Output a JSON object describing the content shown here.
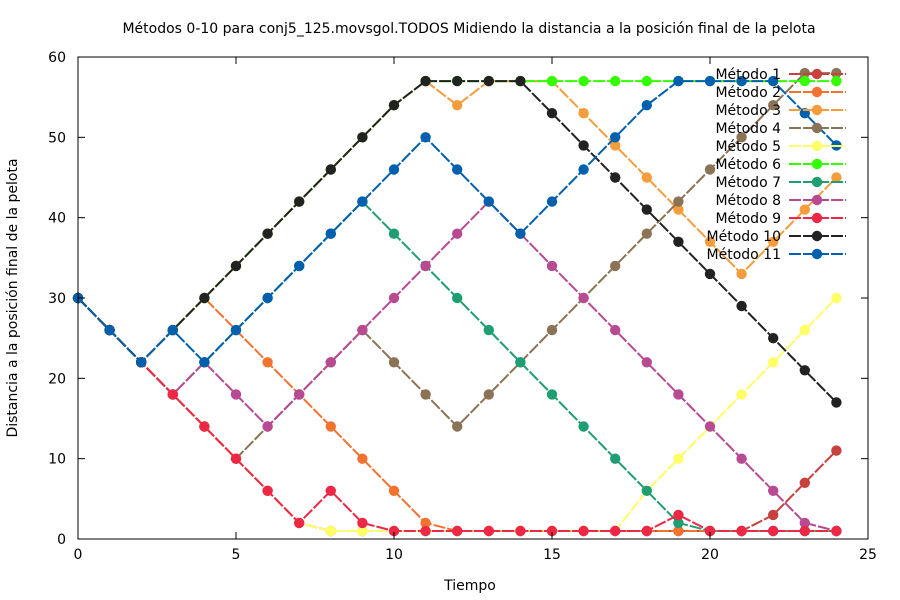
{
  "chart_data": {
    "type": "line",
    "title": "Métodos 0-10 para conj5_125.movsgol.TODOS Midiendo la distancia a la posición final de la pelota",
    "xlabel": "Tiempo",
    "ylabel": "Distancia a la posición final de la pelota",
    "xlim": [
      0,
      25
    ],
    "ylim": [
      0,
      60
    ],
    "xticks": [
      0,
      5,
      10,
      15,
      20,
      25
    ],
    "yticks": [
      0,
      10,
      20,
      30,
      40,
      50,
      60
    ],
    "grid": false,
    "legend_position": "top-right",
    "series": [
      {
        "name": "Método 1",
        "color": "#c8413c",
        "points": [
          [
            0,
            30
          ],
          [
            1,
            26
          ],
          [
            2,
            22
          ],
          [
            3,
            18
          ],
          [
            4,
            14
          ],
          [
            5,
            10
          ],
          [
            6,
            6
          ],
          [
            7,
            2
          ],
          [
            8,
            1
          ],
          [
            9,
            1
          ],
          [
            10,
            1
          ],
          [
            11,
            1
          ],
          [
            12,
            1
          ],
          [
            13,
            1
          ],
          [
            14,
            1
          ],
          [
            15,
            1
          ],
          [
            16,
            1
          ],
          [
            17,
            1
          ],
          [
            18,
            1
          ],
          [
            19,
            1
          ],
          [
            20,
            1
          ],
          [
            21,
            1
          ],
          [
            22,
            3
          ],
          [
            23,
            7
          ],
          [
            24,
            11
          ]
        ]
      },
      {
        "name": "Método 2",
        "color": "#f27330",
        "points": [
          [
            0,
            30
          ],
          [
            1,
            26
          ],
          [
            2,
            22
          ],
          [
            3,
            26
          ],
          [
            4,
            30
          ],
          [
            5,
            26
          ],
          [
            6,
            22
          ],
          [
            7,
            18
          ],
          [
            8,
            14
          ],
          [
            9,
            10
          ],
          [
            10,
            6
          ],
          [
            11,
            2
          ],
          [
            12,
            1
          ],
          [
            13,
            1
          ],
          [
            14,
            1
          ],
          [
            15,
            1
          ],
          [
            16,
            1
          ],
          [
            17,
            1
          ],
          [
            18,
            1
          ],
          [
            19,
            1
          ],
          [
            20,
            1
          ],
          [
            21,
            1
          ],
          [
            22,
            1
          ],
          [
            23,
            1
          ],
          [
            24,
            1
          ]
        ]
      },
      {
        "name": "Método 3",
        "color": "#f59d3d",
        "points": [
          [
            0,
            30
          ],
          [
            1,
            26
          ],
          [
            2,
            22
          ],
          [
            3,
            26
          ],
          [
            4,
            30
          ],
          [
            5,
            34
          ],
          [
            6,
            38
          ],
          [
            7,
            42
          ],
          [
            8,
            46
          ],
          [
            9,
            50
          ],
          [
            10,
            54
          ],
          [
            11,
            57
          ],
          [
            12,
            54
          ],
          [
            13,
            57
          ],
          [
            14,
            57
          ],
          [
            15,
            57
          ],
          [
            16,
            53
          ],
          [
            17,
            49
          ],
          [
            18,
            45
          ],
          [
            19,
            41
          ],
          [
            20,
            37
          ],
          [
            21,
            33
          ],
          [
            22,
            37
          ],
          [
            23,
            41
          ],
          [
            24,
            45
          ]
        ]
      },
      {
        "name": "Método 4",
        "color": "#8b7355",
        "points": [
          [
            0,
            30
          ],
          [
            1,
            26
          ],
          [
            2,
            22
          ],
          [
            3,
            18
          ],
          [
            4,
            14
          ],
          [
            5,
            10
          ],
          [
            6,
            14
          ],
          [
            7,
            18
          ],
          [
            8,
            22
          ],
          [
            9,
            26
          ],
          [
            10,
            22
          ],
          [
            11,
            18
          ],
          [
            12,
            14
          ],
          [
            13,
            18
          ],
          [
            14,
            22
          ],
          [
            15,
            26
          ],
          [
            16,
            30
          ],
          [
            17,
            34
          ],
          [
            18,
            38
          ],
          [
            19,
            42
          ],
          [
            20,
            46
          ],
          [
            21,
            50
          ],
          [
            22,
            54
          ],
          [
            23,
            58
          ],
          [
            24,
            58
          ]
        ]
      },
      {
        "name": "Método 5",
        "color": "#ffff66",
        "points": [
          [
            0,
            30
          ],
          [
            1,
            26
          ],
          [
            2,
            22
          ],
          [
            3,
            18
          ],
          [
            4,
            14
          ],
          [
            5,
            10
          ],
          [
            6,
            6
          ],
          [
            7,
            2
          ],
          [
            8,
            1
          ],
          [
            9,
            1
          ],
          [
            10,
            1
          ],
          [
            11,
            1
          ],
          [
            12,
            1
          ],
          [
            13,
            1
          ],
          [
            14,
            1
          ],
          [
            15,
            1
          ],
          [
            16,
            1
          ],
          [
            17,
            1
          ],
          [
            18,
            6
          ],
          [
            19,
            10
          ],
          [
            20,
            14
          ],
          [
            21,
            18
          ],
          [
            22,
            22
          ],
          [
            23,
            26
          ],
          [
            24,
            30
          ]
        ]
      },
      {
        "name": "Método 6",
        "color": "#33ff00",
        "points": [
          [
            0,
            30
          ],
          [
            1,
            26
          ],
          [
            2,
            22
          ],
          [
            3,
            26
          ],
          [
            4,
            30
          ],
          [
            5,
            34
          ],
          [
            6,
            38
          ],
          [
            7,
            42
          ],
          [
            8,
            46
          ],
          [
            9,
            50
          ],
          [
            10,
            54
          ],
          [
            11,
            57
          ],
          [
            12,
            57
          ],
          [
            13,
            57
          ],
          [
            14,
            57
          ],
          [
            15,
            57
          ],
          [
            16,
            57
          ],
          [
            17,
            57
          ],
          [
            18,
            57
          ],
          [
            19,
            57
          ],
          [
            20,
            57
          ],
          [
            21,
            57
          ],
          [
            22,
            57
          ],
          [
            23,
            57
          ],
          [
            24,
            57
          ]
        ]
      },
      {
        "name": "Método 7",
        "color": "#1f9e72",
        "points": [
          [
            0,
            30
          ],
          [
            1,
            26
          ],
          [
            2,
            22
          ],
          [
            3,
            18
          ],
          [
            4,
            22
          ],
          [
            5,
            26
          ],
          [
            6,
            30
          ],
          [
            7,
            34
          ],
          [
            8,
            38
          ],
          [
            9,
            42
          ],
          [
            10,
            38
          ],
          [
            11,
            34
          ],
          [
            12,
            30
          ],
          [
            13,
            26
          ],
          [
            14,
            22
          ],
          [
            15,
            18
          ],
          [
            16,
            14
          ],
          [
            17,
            10
          ],
          [
            18,
            6
          ],
          [
            19,
            2
          ],
          [
            20,
            1
          ],
          [
            21,
            1
          ],
          [
            22,
            1
          ],
          [
            23,
            1
          ],
          [
            24,
            1
          ]
        ]
      },
      {
        "name": "Método 8",
        "color": "#b84a92",
        "points": [
          [
            0,
            30
          ],
          [
            1,
            26
          ],
          [
            2,
            22
          ],
          [
            3,
            18
          ],
          [
            4,
            22
          ],
          [
            5,
            18
          ],
          [
            6,
            14
          ],
          [
            7,
            18
          ],
          [
            8,
            22
          ],
          [
            9,
            26
          ],
          [
            10,
            30
          ],
          [
            11,
            34
          ],
          [
            12,
            38
          ],
          [
            13,
            42
          ],
          [
            14,
            38
          ],
          [
            15,
            34
          ],
          [
            16,
            30
          ],
          [
            17,
            26
          ],
          [
            18,
            22
          ],
          [
            19,
            18
          ],
          [
            20,
            14
          ],
          [
            21,
            10
          ],
          [
            22,
            6
          ],
          [
            23,
            2
          ],
          [
            24,
            1
          ]
        ]
      },
      {
        "name": "Método 9",
        "color": "#ed2846",
        "points": [
          [
            0,
            30
          ],
          [
            1,
            26
          ],
          [
            2,
            22
          ],
          [
            3,
            18
          ],
          [
            4,
            14
          ],
          [
            5,
            10
          ],
          [
            6,
            6
          ],
          [
            7,
            2
          ],
          [
            8,
            6
          ],
          [
            9,
            2
          ],
          [
            10,
            1
          ],
          [
            11,
            1
          ],
          [
            12,
            1
          ],
          [
            13,
            1
          ],
          [
            14,
            1
          ],
          [
            15,
            1
          ],
          [
            16,
            1
          ],
          [
            17,
            1
          ],
          [
            18,
            1
          ],
          [
            19,
            3
          ],
          [
            20,
            1
          ],
          [
            21,
            1
          ],
          [
            22,
            1
          ],
          [
            23,
            1
          ],
          [
            24,
            1
          ]
        ]
      },
      {
        "name": "Método 10",
        "color": "#222222",
        "points": [
          [
            0,
            30
          ],
          [
            1,
            26
          ],
          [
            2,
            22
          ],
          [
            3,
            26
          ],
          [
            4,
            30
          ],
          [
            5,
            34
          ],
          [
            6,
            38
          ],
          [
            7,
            42
          ],
          [
            8,
            46
          ],
          [
            9,
            50
          ],
          [
            10,
            54
          ],
          [
            11,
            57
          ],
          [
            12,
            57
          ],
          [
            13,
            57
          ],
          [
            14,
            57
          ],
          [
            15,
            53
          ],
          [
            16,
            49
          ],
          [
            17,
            45
          ],
          [
            18,
            41
          ],
          [
            19,
            37
          ],
          [
            20,
            33
          ],
          [
            21,
            29
          ],
          [
            22,
            25
          ],
          [
            23,
            21
          ],
          [
            24,
            17
          ]
        ]
      },
      {
        "name": "Método 11",
        "color": "#0060ad",
        "points": [
          [
            0,
            30
          ],
          [
            1,
            26
          ],
          [
            2,
            22
          ],
          [
            3,
            26
          ],
          [
            4,
            22
          ],
          [
            5,
            26
          ],
          [
            6,
            30
          ],
          [
            7,
            34
          ],
          [
            8,
            38
          ],
          [
            9,
            42
          ],
          [
            10,
            46
          ],
          [
            11,
            50
          ],
          [
            12,
            46
          ],
          [
            13,
            42
          ],
          [
            14,
            38
          ],
          [
            15,
            42
          ],
          [
            16,
            46
          ],
          [
            17,
            50
          ],
          [
            18,
            54
          ],
          [
            19,
            57
          ],
          [
            20,
            57
          ],
          [
            21,
            57
          ],
          [
            22,
            57
          ],
          [
            23,
            53
          ],
          [
            24,
            49
          ]
        ]
      }
    ]
  }
}
